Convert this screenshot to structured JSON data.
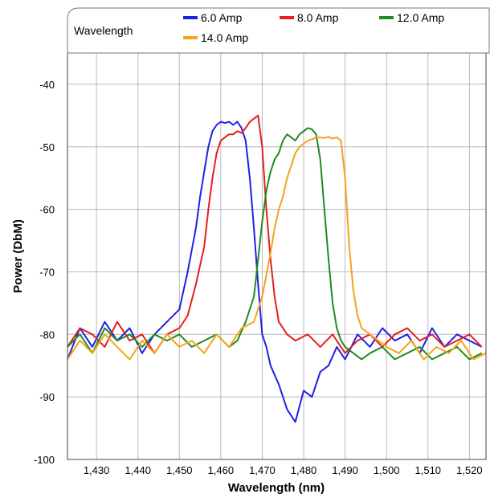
{
  "chart_data": {
    "type": "line",
    "xlabel": "Wavelength (nm)",
    "ylabel": "Power (DbM)",
    "xlim": [
      1423,
      1524
    ],
    "ylim": [
      -100,
      -35
    ],
    "x_ticks": [
      1430,
      1440,
      1450,
      1460,
      1470,
      1480,
      1490,
      1500,
      1510,
      1520
    ],
    "x_tick_labels": [
      "1,430",
      "1,440",
      "1,450",
      "1,460",
      "1,470",
      "1,480",
      "1,490",
      "1,500",
      "1,510",
      "1,520"
    ],
    "y_ticks": [
      -100,
      -90,
      -80,
      -70,
      -60,
      -50,
      -40
    ],
    "y_tick_labels": [
      "-100",
      "-90",
      "-80",
      "-70",
      "-60",
      "-50",
      "-40"
    ],
    "grid": true,
    "legend": {
      "title": "Wavelength",
      "placement": "top"
    },
    "series": [
      {
        "name": "6.0 Amp",
        "color": "#1f1fe6",
        "x": [
          1423,
          1426,
          1429,
          1432,
          1435,
          1438,
          1441,
          1444,
          1447,
          1450,
          1452,
          1454,
          1455,
          1456,
          1457,
          1458,
          1459,
          1460,
          1461,
          1462,
          1463,
          1464,
          1465,
          1466,
          1467,
          1468,
          1469,
          1470,
          1471,
          1472,
          1474,
          1476,
          1478,
          1480,
          1482,
          1484,
          1486,
          1488,
          1490,
          1493,
          1496,
          1499,
          1502,
          1505,
          1508,
          1511,
          1514,
          1517,
          1520,
          1523
        ],
        "y": [
          -84,
          -79,
          -82,
          -78,
          -81,
          -79,
          -83,
          -80,
          -78,
          -76,
          -70,
          -63,
          -58,
          -54,
          -50,
          -47.5,
          -46.5,
          -46,
          -46.2,
          -46,
          -46.5,
          -46,
          -47,
          -49,
          -55,
          -63,
          -72,
          -80,
          -82,
          -85,
          -88,
          -92,
          -94,
          -89,
          -90,
          -86,
          -85,
          -82,
          -84,
          -80,
          -82,
          -79,
          -81,
          -80,
          -83,
          -79,
          -82,
          -80,
          -81,
          -82
        ]
      },
      {
        "name": "8.0 Amp",
        "color": "#e61e1e",
        "x": [
          1423,
          1426,
          1429,
          1432,
          1435,
          1438,
          1441,
          1444,
          1447,
          1450,
          1452,
          1454,
          1456,
          1457,
          1458,
          1459,
          1460,
          1461,
          1462,
          1463,
          1464,
          1465,
          1466,
          1467,
          1468,
          1469,
          1470,
          1471,
          1472,
          1473,
          1474,
          1476,
          1478,
          1481,
          1484,
          1487,
          1490,
          1493,
          1496,
          1499,
          1502,
          1505,
          1508,
          1511,
          1514,
          1517,
          1520,
          1523
        ],
        "y": [
          -82,
          -79,
          -80,
          -82,
          -78,
          -81,
          -80,
          -83,
          -80,
          -79,
          -77,
          -72,
          -66,
          -60,
          -55,
          -51,
          -49,
          -48.5,
          -48,
          -48,
          -47.5,
          -47.8,
          -47,
          -46,
          -45.5,
          -45,
          -50,
          -60,
          -68,
          -74,
          -78,
          -80,
          -81,
          -80,
          -82,
          -80,
          -83,
          -81,
          -80,
          -82,
          -80,
          -79,
          -81,
          -80,
          -82,
          -81,
          -80,
          -82
        ]
      },
      {
        "name": "12.0 Amp",
        "color": "#1e8c1e",
        "x": [
          1423,
          1426,
          1429,
          1432,
          1435,
          1438,
          1441,
          1444,
          1447,
          1450,
          1453,
          1456,
          1459,
          1462,
          1464,
          1466,
          1468,
          1469,
          1470,
          1471,
          1472,
          1473,
          1474,
          1475,
          1476,
          1477,
          1478,
          1479,
          1480,
          1481,
          1482,
          1483,
          1484,
          1485,
          1486,
          1487,
          1488,
          1489,
          1490,
          1492,
          1494,
          1496,
          1499,
          1502,
          1505,
          1508,
          1511,
          1514,
          1517,
          1520,
          1523
        ],
        "y": [
          -82,
          -80,
          -83,
          -79,
          -81,
          -80,
          -82,
          -80,
          -81,
          -80,
          -82,
          -81,
          -80,
          -82,
          -81,
          -78,
          -74,
          -68,
          -62,
          -57,
          -54,
          -52,
          -51,
          -49,
          -48,
          -48.5,
          -49,
          -48,
          -47.5,
          -47,
          -47.2,
          -48,
          -52,
          -60,
          -68,
          -75,
          -79,
          -81,
          -82,
          -83,
          -84,
          -83,
          -82,
          -84,
          -83,
          -82,
          -84,
          -83,
          -82,
          -84,
          -83
        ]
      },
      {
        "name": "14.0 Amp",
        "color": "#f5a31a",
        "x": [
          1423,
          1426,
          1429,
          1432,
          1435,
          1438,
          1441,
          1444,
          1447,
          1450,
          1453,
          1456,
          1459,
          1462,
          1465,
          1468,
          1470,
          1472,
          1473,
          1474,
          1475,
          1476,
          1477,
          1478,
          1479,
          1480,
          1481,
          1482,
          1483,
          1484,
          1485,
          1486,
          1487,
          1488,
          1489,
          1490,
          1491,
          1492,
          1493,
          1494,
          1496,
          1498,
          1500,
          1503,
          1506,
          1509,
          1512,
          1515,
          1518,
          1521,
          1524
        ],
        "y": [
          -84,
          -81,
          -83,
          -80,
          -82,
          -84,
          -81,
          -83,
          -80,
          -82,
          -81,
          -83,
          -80,
          -82,
          -79,
          -78,
          -74,
          -67,
          -63,
          -60,
          -58,
          -55,
          -53,
          -51,
          -50,
          -49.5,
          -49,
          -48.8,
          -48.5,
          -48.5,
          -48.6,
          -48.4,
          -48.7,
          -48.5,
          -49,
          -55,
          -66,
          -73,
          -77,
          -79,
          -80,
          -81,
          -82,
          -83,
          -81,
          -84,
          -82,
          -83,
          -81,
          -84,
          -83
        ]
      }
    ]
  }
}
